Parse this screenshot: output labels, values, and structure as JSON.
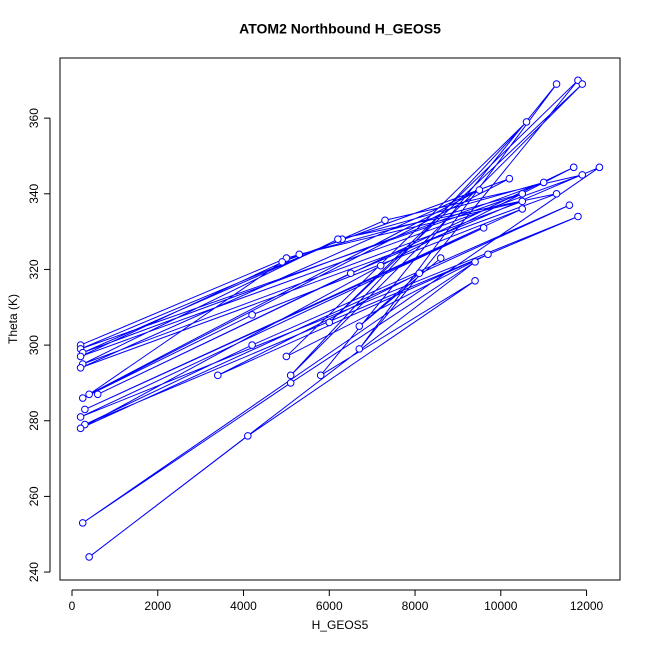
{
  "chart_data": {
    "type": "line",
    "title": "ATOM2 Northbound H_GEOS5",
    "x_label": "H_GEOS5",
    "y_label": "Theta (K)",
    "color": "#0000ff",
    "x": [
      200,
      5000,
      10500,
      200,
      6300,
      11000,
      250,
      7300,
      11900,
      200,
      5300,
      10500,
      250,
      6200,
      11300,
      200,
      9500,
      400,
      4900,
      10200,
      250,
      4200,
      10500,
      300,
      9600,
      200,
      11800,
      300,
      4200,
      11600,
      200,
      7200,
      11700,
      600,
      6500,
      12300,
      250,
      5100,
      9400,
      400,
      4100,
      9400,
      5800,
      11300,
      6700,
      11800,
      6000,
      11900,
      5100,
      10600,
      5000,
      9700,
      3400,
      8100,
      6700,
      8600
    ],
    "values": [
      300,
      323,
      340,
      299,
      328,
      343,
      298,
      333,
      345,
      297,
      324,
      338,
      295,
      328,
      340,
      294,
      341,
      287,
      322,
      344,
      286,
      308,
      336,
      283,
      331,
      281,
      334,
      279,
      300,
      337,
      278,
      321,
      347,
      287,
      319,
      347,
      253,
      290,
      322,
      244,
      276,
      317,
      292,
      369,
      299,
      370,
      306,
      369,
      292,
      359,
      297,
      324,
      292,
      319,
      305,
      323
    ],
    "xlim": [
      -280,
      12780
    ],
    "ylim": [
      237.9,
      375.9
    ],
    "xticks": [
      0,
      2000,
      4000,
      6000,
      8000,
      10000,
      12000
    ],
    "yticks": [
      240,
      260,
      280,
      300,
      320,
      340,
      360
    ]
  }
}
